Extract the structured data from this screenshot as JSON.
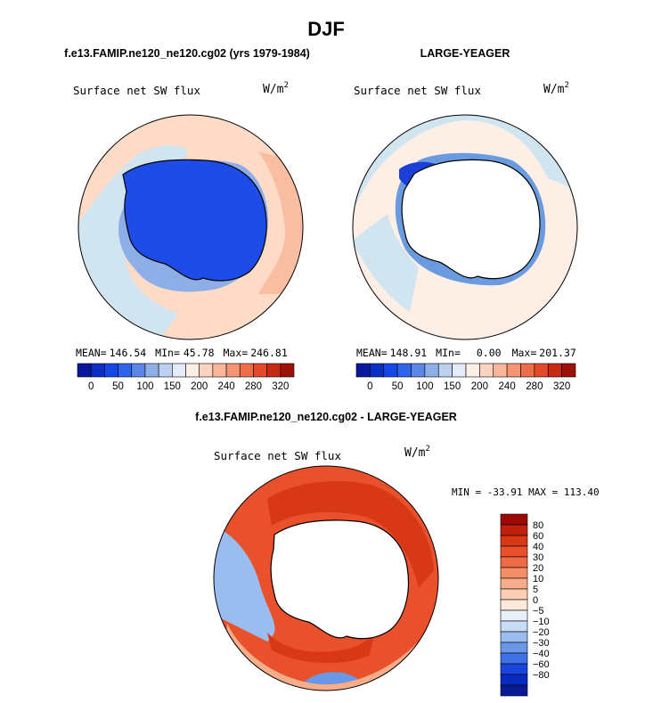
{
  "figure": {
    "title": "DJF",
    "colors": {
      "ocean_warm": "#fddbc7",
      "ocean_pale": "#f4a582",
      "ocean_red": "#e9623f",
      "ocean_dark": "#d6401f",
      "ocean_cool": "#d1e5f0",
      "ocean_blue": "#6a9be0",
      "land_blue": "#1e4ce8",
      "land_white": "#ffffff"
    }
  },
  "chart_data": [
    {
      "type": "heatmap",
      "panel": "top-left",
      "title": "f.e13.FAMIP.ne120_ne120.cg02 (yrs 1979-1984)",
      "subtitle": "Surface net SW flux",
      "units": "W/m",
      "units_sup": "2",
      "projection": "south-polar-stereographic",
      "stats": {
        "mean_label": "MEAN=",
        "mean": "146.54",
        "min_label": "MIn=",
        "min": "45.78",
        "max_label": "Max=",
        "max": "246.81"
      },
      "colorbar": {
        "orientation": "horizontal",
        "tick_labels": [
          "0",
          "50",
          "100",
          "150",
          "200",
          "240",
          "280",
          "320"
        ],
        "colors": [
          "#08179b",
          "#0b2fc4",
          "#1447e6",
          "#2e64ea",
          "#5b86e8",
          "#8eaee8",
          "#bcd0f0",
          "#e3ecf8",
          "#fdeee6",
          "#fbd4c1",
          "#f8b79a",
          "#f49472",
          "#ee6e4b",
          "#e34a2b",
          "#c92a12",
          "#9c1208"
        ]
      }
    },
    {
      "type": "heatmap",
      "panel": "top-right",
      "title": "LARGE-YEAGER",
      "subtitle": "Surface net SW flux",
      "units": "W/m",
      "units_sup": "2",
      "projection": "south-polar-stereographic",
      "stats": {
        "mean_label": "MEAN=",
        "mean": "148.91",
        "min_label": "MIn=",
        "min": "0.00",
        "max_label": "Max=",
        "max": "201.37"
      },
      "colorbar": {
        "orientation": "horizontal",
        "tick_labels": [
          "0",
          "50",
          "100",
          "150",
          "200",
          "240",
          "280",
          "320"
        ],
        "colors": [
          "#08179b",
          "#0b2fc4",
          "#1447e6",
          "#2e64ea",
          "#5b86e8",
          "#8eaee8",
          "#bcd0f0",
          "#e3ecf8",
          "#fdeee6",
          "#fbd4c1",
          "#f8b79a",
          "#f49472",
          "#ee6e4b",
          "#e34a2b",
          "#c92a12",
          "#9c1208"
        ]
      }
    },
    {
      "type": "heatmap",
      "panel": "bottom",
      "title": "f.e13.FAMIP.ne120_ne120.cg02 - LARGE-YEAGER",
      "subtitle": "Surface net SW flux",
      "units": "W/m",
      "units_sup": "2",
      "projection": "south-polar-stereographic",
      "stats_text": "MIN = -33.91 MAX = 113.40",
      "stats": {
        "min": -33.91,
        "max": 113.4
      },
      "colorbar": {
        "orientation": "vertical",
        "tick_labels": [
          "80",
          "60",
          "40",
          "30",
          "20",
          "10",
          "5",
          "0",
          "−5",
          "−10",
          "−20",
          "−30",
          "−40",
          "−60",
          "−80"
        ],
        "colors": [
          "#9c0a06",
          "#c0210c",
          "#d93816",
          "#e8512b",
          "#ee6b45",
          "#f48e66",
          "#f7ad8a",
          "#fbcfb5",
          "#fde9dc",
          "#e8f0fa",
          "#c9dcf5",
          "#9bbcee",
          "#6a98e6",
          "#3d71e4",
          "#1a45dc",
          "#0a2bbf",
          "#081b93"
        ]
      }
    }
  ]
}
